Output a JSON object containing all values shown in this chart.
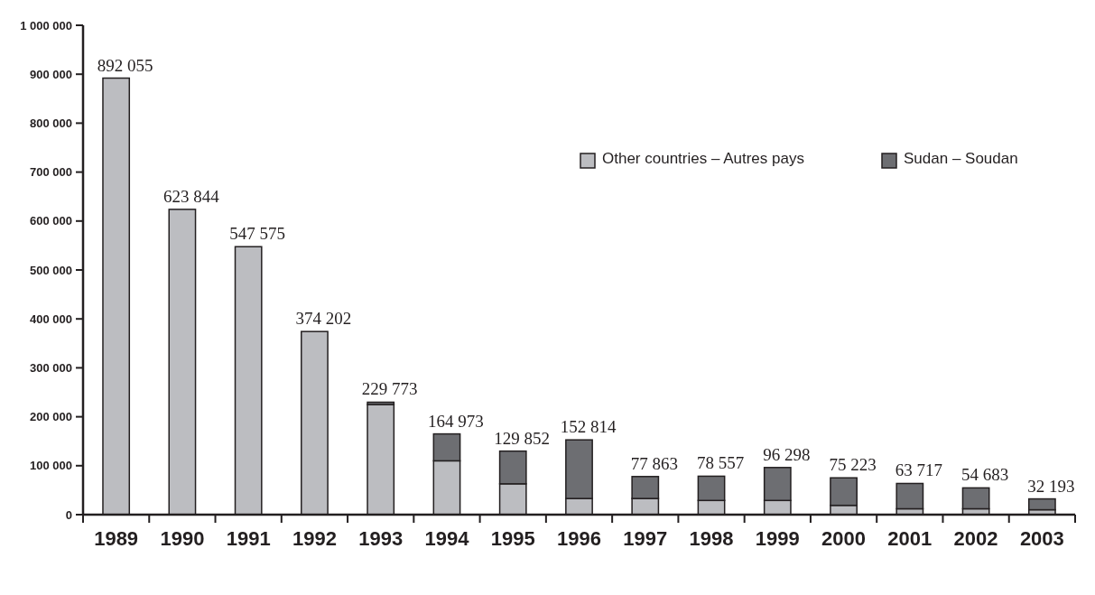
{
  "chart_data": {
    "type": "bar",
    "stacked": true,
    "categories": [
      "1989",
      "1990",
      "1991",
      "1992",
      "1993",
      "1994",
      "1995",
      "1996",
      "1997",
      "1998",
      "1999",
      "2000",
      "2001",
      "2002",
      "2003"
    ],
    "series": [
      {
        "name": "Other countries – Autres pays",
        "color": "#bcbdc1",
        "values": [
          892055,
          623844,
          547575,
          374202,
          225000,
          110000,
          63000,
          33000,
          33000,
          29000,
          29000,
          19000,
          12000,
          12000,
          10000
        ]
      },
      {
        "name": "Sudan – Soudan",
        "color": "#6d6e72",
        "values": [
          0,
          0,
          0,
          0,
          4773,
          54973,
          66852,
          119814,
          44863,
          49557,
          67298,
          56223,
          51717,
          42683,
          22193
        ]
      }
    ],
    "totals": [
      "892 055",
      "623 844",
      "547 575",
      "374 202",
      "229 773",
      "164 973",
      "129 852",
      "152 814",
      "77 863",
      "78 557",
      "96 298",
      "75 223",
      "63 717",
      "54 683",
      "32 193"
    ],
    "ylim": [
      0,
      1000000
    ],
    "yticks": [
      {
        "value": 0,
        "label": "0"
      },
      {
        "value": 100000,
        "label": "100 000"
      },
      {
        "value": 200000,
        "label": "200 000"
      },
      {
        "value": 300000,
        "label": "300 000"
      },
      {
        "value": 400000,
        "label": "400 000"
      },
      {
        "value": 500000,
        "label": "500 000"
      },
      {
        "value": 600000,
        "label": "600 000"
      },
      {
        "value": 700000,
        "label": "700 000"
      },
      {
        "value": 800000,
        "label": "800 000"
      },
      {
        "value": 900000,
        "label": "900 000"
      },
      {
        "value": 1000000,
        "label": "1 000 000"
      }
    ],
    "grid": false,
    "legend": "top right"
  }
}
